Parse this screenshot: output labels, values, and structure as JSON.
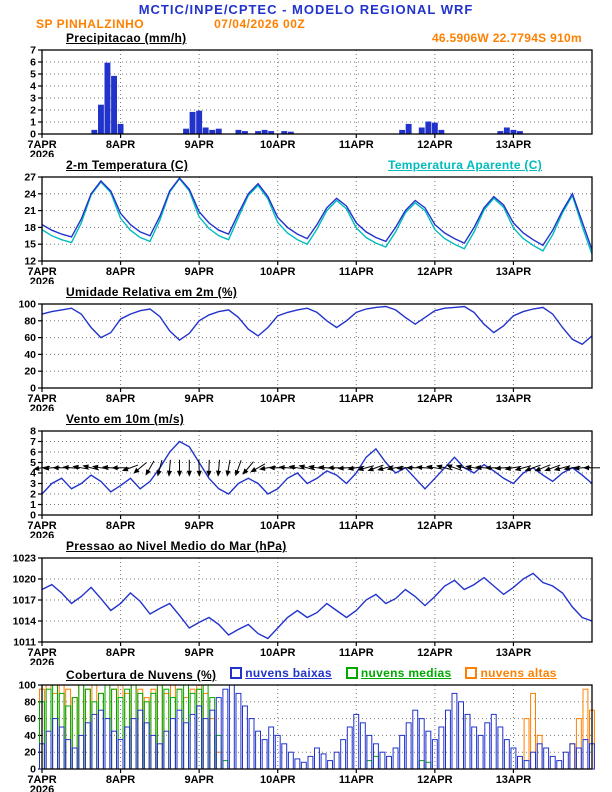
{
  "header": {
    "title": "MCTIC/INPE/CPTEC - MODELO REGIONAL WRF",
    "station": "SP PINHALZINHO",
    "run": "07/04/2026 00Z",
    "location": "46.5906W 22.7794S 910m"
  },
  "colors": {
    "blue": "#2233cc",
    "orange": "#ff8000",
    "cyan": "#00bcbc",
    "green": "#00a800",
    "black": "#000000",
    "grid": "#777777"
  },
  "axis": {
    "x_hours": [
      0,
      168
    ],
    "xticks": [
      {
        "t": 0,
        "label": "7APR",
        "sublabel": "2026"
      },
      {
        "t": 24,
        "label": "8APR"
      },
      {
        "t": 48,
        "label": "9APR"
      },
      {
        "t": 72,
        "label": "10APR"
      },
      {
        "t": 96,
        "label": "11APR"
      },
      {
        "t": 120,
        "label": "12APR"
      },
      {
        "t": 144,
        "label": "13APR"
      }
    ]
  },
  "chart_data": [
    {
      "name": "precipitation",
      "type": "bar",
      "title": "Precipitacao (mm/h)",
      "ylabel": "mm/h",
      "ylim": [
        0,
        7
      ],
      "yticks": [
        0,
        1,
        2,
        3,
        4,
        5,
        6,
        7
      ],
      "step_hours": 2,
      "color": "blue",
      "values": [
        0,
        0,
        0,
        0,
        0,
        0,
        0,
        0,
        0.3,
        2.4,
        5.9,
        4.8,
        0.8,
        0,
        0,
        0,
        0,
        0,
        0,
        0,
        0,
        0,
        0.4,
        1.8,
        1.9,
        0.5,
        0.3,
        0.4,
        0,
        0,
        0.3,
        0.2,
        0,
        0.2,
        0.3,
        0.2,
        0,
        0.2,
        0.15,
        0,
        0,
        0,
        0,
        0,
        0,
        0,
        0,
        0,
        0,
        0,
        0,
        0,
        0,
        0,
        0,
        0.3,
        0.8,
        0,
        0.5,
        1.0,
        0.9,
        0.3,
        0,
        0,
        0,
        0,
        0,
        0,
        0,
        0,
        0.2,
        0.5,
        0.3,
        0.2,
        0,
        0,
        0,
        0,
        0,
        0,
        0,
        0,
        0,
        0,
        0
      ]
    },
    {
      "name": "temperature-2m",
      "type": "line",
      "title": "2-m Temperatura (C)",
      "right_label": {
        "text": "Temperatura Aparente (C)",
        "color": "cyan"
      },
      "ylabel": "C",
      "ylim": [
        12,
        27
      ],
      "yticks": [
        12,
        15,
        18,
        21,
        24,
        27
      ],
      "step_hours": 3,
      "series": [
        {
          "name": "Temperatura Aparente",
          "color": "cyan",
          "values": [
            17.6,
            16.5,
            15.8,
            15.3,
            18.8,
            23.8,
            26.1,
            24.2,
            19.6,
            17.5,
            16.2,
            15.5,
            19.3,
            24.3,
            26.7,
            24.5,
            19.9,
            17.8,
            16.5,
            15.8,
            19.8,
            23.7,
            25.5,
            23.1,
            18.9,
            17,
            15.8,
            15,
            17.7,
            21,
            22.8,
            21.3,
            17.9,
            16.2,
            15.2,
            14.5,
            17.2,
            20.6,
            22.4,
            21,
            17.6,
            16,
            15,
            14.2,
            17.2,
            21.1,
            23.2,
            21.6,
            17.9,
            16,
            14.8,
            13.8,
            16.7,
            20.6,
            23.7,
            18.2,
            13.2
          ]
        },
        {
          "name": "2-m Temperatura",
          "color": "blue",
          "values": [
            18.5,
            17.5,
            16.8,
            16.3,
            19.5,
            24,
            26.3,
            24.5,
            20.5,
            18.5,
            17.2,
            16.5,
            20,
            24.5,
            26.8,
            24.8,
            20.8,
            18.8,
            17.5,
            16.8,
            20.5,
            24,
            25.8,
            23.5,
            19.8,
            18,
            16.8,
            16,
            18.5,
            21.5,
            23.2,
            21.8,
            18.8,
            17.2,
            16.2,
            15.5,
            18,
            21,
            22.8,
            21.5,
            18.5,
            17,
            16,
            15.2,
            18,
            21.5,
            23.5,
            22,
            18.8,
            17,
            15.8,
            14.8,
            17.5,
            21,
            24,
            19,
            14
          ]
        }
      ]
    },
    {
      "name": "relative-humidity-2m",
      "type": "line",
      "title": "Umidade Relativa em 2m (%)",
      "ylabel": "%",
      "ylim": [
        0,
        100
      ],
      "yticks": [
        0,
        20,
        40,
        60,
        80,
        100
      ],
      "step_hours": 3,
      "series": [
        {
          "name": "Umidade Relativa",
          "color": "blue",
          "values": [
            88,
            91,
            93,
            95,
            88,
            72,
            60,
            66,
            82,
            88,
            92,
            94,
            85,
            68,
            57,
            65,
            80,
            87,
            91,
            93,
            84,
            70,
            62,
            72,
            86,
            90,
            93,
            95,
            90,
            80,
            72,
            80,
            90,
            94,
            96,
            97,
            93,
            84,
            76,
            84,
            92,
            95,
            96,
            97,
            90,
            76,
            66,
            74,
            86,
            91,
            94,
            96,
            88,
            72,
            58,
            52,
            62
          ]
        }
      ]
    },
    {
      "name": "wind-10m",
      "type": "line",
      "title": "Vento em 10m (m/s)",
      "ylabel": "m/s",
      "ylim": [
        0,
        8
      ],
      "yticks": [
        0,
        1,
        2,
        3,
        4,
        5,
        6,
        7,
        8
      ],
      "step_hours": 3,
      "series": [
        {
          "name": "Velocidade do Vento",
          "color": "blue",
          "values": [
            2,
            3,
            3.5,
            2.5,
            3,
            3.8,
            3.2,
            2.2,
            2.8,
            3.5,
            2.5,
            3.2,
            4.5,
            6,
            7,
            6.5,
            5,
            3.5,
            2.5,
            2,
            3,
            3.5,
            3,
            2,
            2.5,
            3.5,
            4,
            3,
            3.5,
            4.2,
            3.8,
            3,
            4,
            5.5,
            6.3,
            5,
            4,
            4.5,
            3.5,
            2.5,
            3.5,
            4.5,
            5.5,
            4.5,
            4,
            4.8,
            4.2,
            3.5,
            3,
            4,
            4.5,
            3.8,
            3.2,
            4,
            4.5,
            3.8,
            3
          ]
        }
      ],
      "arrows": {
        "step_hours": 3,
        "anchor_y": 4.5,
        "directions_deg": [
          170,
          175,
          180,
          185,
          190,
          195,
          190,
          185,
          180,
          160,
          140,
          120,
          105,
          95,
          90,
          90,
          88,
          92,
          95,
          100,
          110,
          130,
          150,
          170,
          180,
          185,
          190,
          195,
          190,
          185,
          180,
          175,
          170,
          165,
          160,
          165,
          170,
          175,
          180,
          185,
          190,
          195,
          200,
          195,
          190,
          185,
          180,
          175,
          170,
          165,
          160,
          158,
          160,
          165,
          170,
          175,
          180
        ]
      }
    },
    {
      "name": "mean-sea-level-pressure",
      "type": "line",
      "title": "Pressao ao Nivel Medio do Mar (hPa)",
      "ylabel": "hPa",
      "ylim": [
        1011,
        1023
      ],
      "yticks": [
        1011,
        1014,
        1017,
        1020,
        1023
      ],
      "step_hours": 3,
      "series": [
        {
          "name": "Pressao",
          "color": "blue",
          "values": [
            1018.5,
            1019.2,
            1018,
            1016.5,
            1017.5,
            1018.8,
            1017.2,
            1015.5,
            1016.5,
            1018,
            1016.8,
            1015,
            1015.8,
            1016.5,
            1014.8,
            1013,
            1013.8,
            1014.5,
            1013.5,
            1012,
            1012.8,
            1013.5,
            1012.2,
            1011.5,
            1013,
            1014.5,
            1015.5,
            1014.5,
            1015.2,
            1016.5,
            1015.5,
            1014.5,
            1015.5,
            1017,
            1017.8,
            1016.5,
            1017.2,
            1018.5,
            1017.5,
            1016.2,
            1017.5,
            1019,
            1019.8,
            1018.5,
            1019.2,
            1020.2,
            1019,
            1017.8,
            1018.8,
            1020,
            1020.8,
            1019.5,
            1019,
            1018,
            1016,
            1014.5,
            1014
          ]
        }
      ]
    },
    {
      "name": "cloud-cover",
      "type": "outline-bar",
      "title": "Cobertura de Nuvens (%)",
      "ylabel": "%",
      "ylim": [
        0,
        100
      ],
      "yticks": [
        0,
        20,
        40,
        60,
        80,
        100
      ],
      "step_hours": 2,
      "legend": [
        {
          "label": "nuvens baixas",
          "color": "blue"
        },
        {
          "label": "nuvens medias",
          "color": "green"
        },
        {
          "label": "nuvens altas",
          "color": "orange"
        }
      ],
      "series": [
        {
          "name": "nuvens altas",
          "color": "orange",
          "values": [
            95,
            100,
            90,
            100,
            95,
            85,
            100,
            95,
            100,
            90,
            100,
            95,
            100,
            90,
            100,
            95,
            85,
            95,
            100,
            90,
            100,
            95,
            85,
            95,
            100,
            90,
            60,
            20,
            0,
            0,
            0,
            0,
            0,
            0,
            0,
            0,
            0,
            0,
            0,
            0,
            0,
            0,
            0,
            0,
            0,
            0,
            0,
            0,
            0,
            0,
            0,
            0,
            0,
            0,
            0,
            0,
            0,
            0,
            0,
            0,
            0,
            0,
            0,
            0,
            0,
            0,
            0,
            0,
            0,
            0,
            0,
            0,
            0,
            0,
            60,
            90,
            40,
            0,
            0,
            0,
            0,
            30,
            60,
            95,
            70
          ]
        },
        {
          "name": "nuvens medias",
          "color": "green",
          "values": [
            80,
            95,
            100,
            90,
            75,
            85,
            100,
            95,
            80,
            90,
            100,
            95,
            85,
            95,
            100,
            90,
            80,
            90,
            100,
            95,
            85,
            95,
            100,
            90,
            95,
            100,
            85,
            40,
            10,
            0,
            0,
            0,
            0,
            0,
            0,
            0,
            0,
            0,
            0,
            0,
            0,
            0,
            0,
            0,
            0,
            0,
            0,
            0,
            0,
            0,
            10,
            15,
            0,
            0,
            0,
            0,
            0,
            0,
            10,
            8,
            0,
            0,
            0,
            0,
            0,
            0,
            0,
            0,
            0,
            0,
            0,
            0,
            0,
            0,
            0,
            0,
            0,
            0,
            0,
            0,
            0,
            0,
            0,
            0,
            0
          ]
        },
        {
          "name": "nuvens baixas",
          "color": "blue",
          "values": [
            30,
            45,
            60,
            50,
            35,
            25,
            40,
            55,
            65,
            70,
            60,
            45,
            35,
            50,
            60,
            70,
            55,
            40,
            30,
            45,
            60,
            70,
            55,
            65,
            75,
            60,
            70,
            85,
            95,
            100,
            90,
            75,
            60,
            45,
            35,
            50,
            40,
            30,
            20,
            12,
            8,
            15,
            25,
            18,
            10,
            20,
            35,
            50,
            65,
            55,
            40,
            30,
            20,
            15,
            25,
            40,
            55,
            70,
            60,
            45,
            35,
            50,
            70,
            90,
            80,
            65,
            50,
            40,
            55,
            65,
            50,
            35,
            25,
            15,
            10,
            20,
            30,
            25,
            15,
            10,
            20,
            30,
            25,
            35,
            30
          ]
        }
      ]
    }
  ]
}
